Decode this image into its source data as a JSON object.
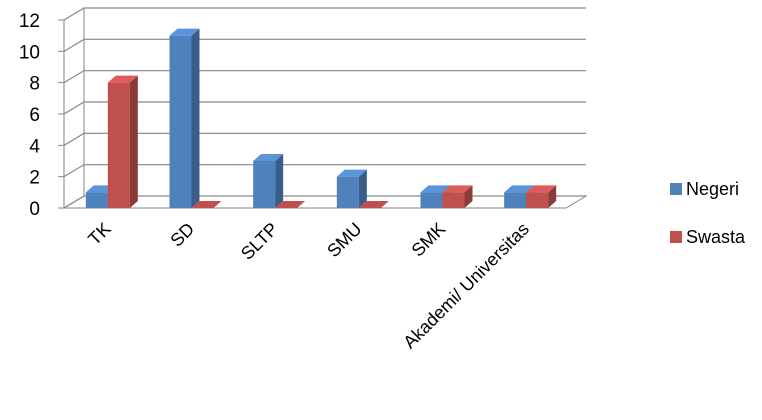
{
  "chart_data": {
    "type": "bar",
    "style": "3d-clustered-column",
    "categories": [
      "TK",
      "SD",
      "SLTP",
      "SMU",
      "SMK",
      "Akademi/ Universitas"
    ],
    "series": [
      {
        "name": "Negeri",
        "values": [
          1,
          11,
          3,
          2,
          1,
          1
        ],
        "color": "#4F81BD"
      },
      {
        "name": "Swasta",
        "values": [
          8,
          0,
          0,
          0,
          1,
          1
        ],
        "color": "#C0504D"
      }
    ],
    "ylim": [
      0,
      12
    ],
    "yticks": [
      0,
      2,
      4,
      6,
      8,
      10,
      12
    ],
    "xlabel": "",
    "ylabel": "",
    "title": "",
    "grid": true,
    "legend": "right"
  }
}
